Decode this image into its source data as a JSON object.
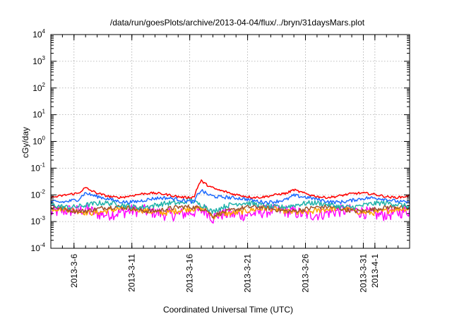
{
  "chart_data": {
    "type": "line",
    "title": "/data/run/goesPlots/archive/2013-04-04/flux/../bryn/31daysMars.plot",
    "xlabel": "Coordinated Universal Time (UTC)",
    "ylabel": "cGy/day",
    "y_scale": "log",
    "ylim": [
      0.0001,
      10000
    ],
    "xlim": [
      "2013-03-04",
      "2013-04-04"
    ],
    "grid": true,
    "y_ticks": [
      {
        "base": "10",
        "exp": "-4",
        "value": 0.0001
      },
      {
        "base": "10",
        "exp": "-3",
        "value": 0.001
      },
      {
        "base": "10",
        "exp": "-2",
        "value": 0.01
      },
      {
        "base": "10",
        "exp": "-1",
        "value": 0.1
      },
      {
        "base": "10",
        "exp": "0",
        "value": 1
      },
      {
        "base": "10",
        "exp": "1",
        "value": 10
      },
      {
        "base": "10",
        "exp": "2",
        "value": 100
      },
      {
        "base": "10",
        "exp": "3",
        "value": 1000
      },
      {
        "base": "10",
        "exp": "4",
        "value": 10000
      }
    ],
    "x_ticks": [
      {
        "label": "2013-3-6",
        "date": "2013-03-06"
      },
      {
        "label": "2013-3-11",
        "date": "2013-03-11"
      },
      {
        "label": "2013-3-16",
        "date": "2013-03-16"
      },
      {
        "label": "2013-3-21",
        "date": "2013-03-21"
      },
      {
        "label": "2013-3-26",
        "date": "2013-03-26"
      },
      {
        "label": "2013-3-31",
        "date": "2013-03-31"
      },
      {
        "label": "2013-4-1",
        "date": "2013-04-01"
      }
    ],
    "series": [
      {
        "color": "#ff00ff",
        "base": 0.0022,
        "noise": 0.55,
        "events": [
          {
            "date": "2013-03-07",
            "factor": 1.4
          },
          {
            "date": "2013-03-18",
            "factor": 0.5
          }
        ]
      },
      {
        "color": "#ffa500",
        "base": 0.0026,
        "noise": 0.25,
        "events": [
          {
            "date": "2013-03-18",
            "factor": 0.55
          }
        ]
      },
      {
        "color": "#a0522d",
        "base": 0.003,
        "noise": 0.2,
        "events": [
          {
            "date": "2013-03-18",
            "factor": 0.6
          }
        ]
      },
      {
        "color": "#20b2aa",
        "base": 0.0042,
        "noise": 0.22,
        "events": [
          {
            "date": "2013-03-16",
            "factor": 1.6
          },
          {
            "date": "2013-03-18",
            "factor": 0.6
          }
        ]
      },
      {
        "color": "#1e6bff",
        "base": 0.0065,
        "noise": 0.15,
        "events": [
          {
            "date": "2013-03-07",
            "factor": 1.6
          },
          {
            "date": "2013-03-17",
            "factor": 2.8
          },
          {
            "date": "2013-03-25",
            "factor": 1.3
          }
        ]
      },
      {
        "color": "#ff0000",
        "base": 0.0098,
        "noise": 0.1,
        "events": [
          {
            "date": "2013-03-07",
            "factor": 1.6
          },
          {
            "date": "2013-03-17",
            "factor": 3.6
          },
          {
            "date": "2013-03-25",
            "factor": 1.35
          }
        ]
      }
    ]
  }
}
